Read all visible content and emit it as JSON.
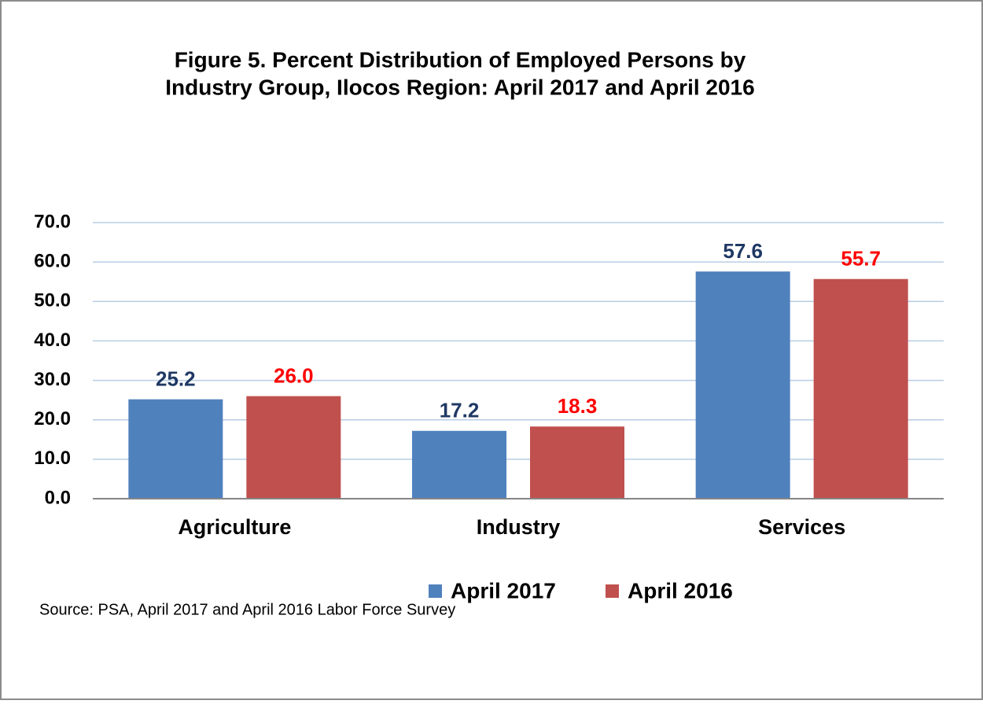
{
  "chart_data": {
    "type": "bar",
    "title": [
      "Figure 5. Percent Distribution of Employed Persons by",
      "Industry Group, Ilocos Region: April 2017 and April 2016"
    ],
    "categories": [
      "Agriculture",
      "Industry",
      "Services"
    ],
    "series": [
      {
        "name": "April 2017",
        "color": "#4f81bd",
        "label_color": "#1f3864",
        "values": [
          25.2,
          17.2,
          57.6
        ],
        "value_labels": [
          "25.2",
          "17.2",
          "57.6"
        ]
      },
      {
        "name": "April 2016",
        "color": "#c0504d",
        "label_color": "#ff0000",
        "values": [
          26.0,
          18.3,
          55.7
        ],
        "value_labels": [
          "26.0",
          "18.3",
          "55.7"
        ]
      }
    ],
    "ylim": [
      0,
      70
    ],
    "yticks": [
      {
        "value": 0,
        "label": "0.0"
      },
      {
        "value": 10,
        "label": "10.0"
      },
      {
        "value": 20,
        "label": "20.0"
      },
      {
        "value": 30,
        "label": "30.0"
      },
      {
        "value": 40,
        "label": "40.0"
      },
      {
        "value": 50,
        "label": "50.0"
      },
      {
        "value": 60,
        "label": "60.0"
      },
      {
        "value": 70,
        "label": "70.0"
      }
    ],
    "grid": true,
    "legend": "bottom",
    "source": "Source: PSA, April 2017 and April 2016 Labor Force Survey"
  }
}
